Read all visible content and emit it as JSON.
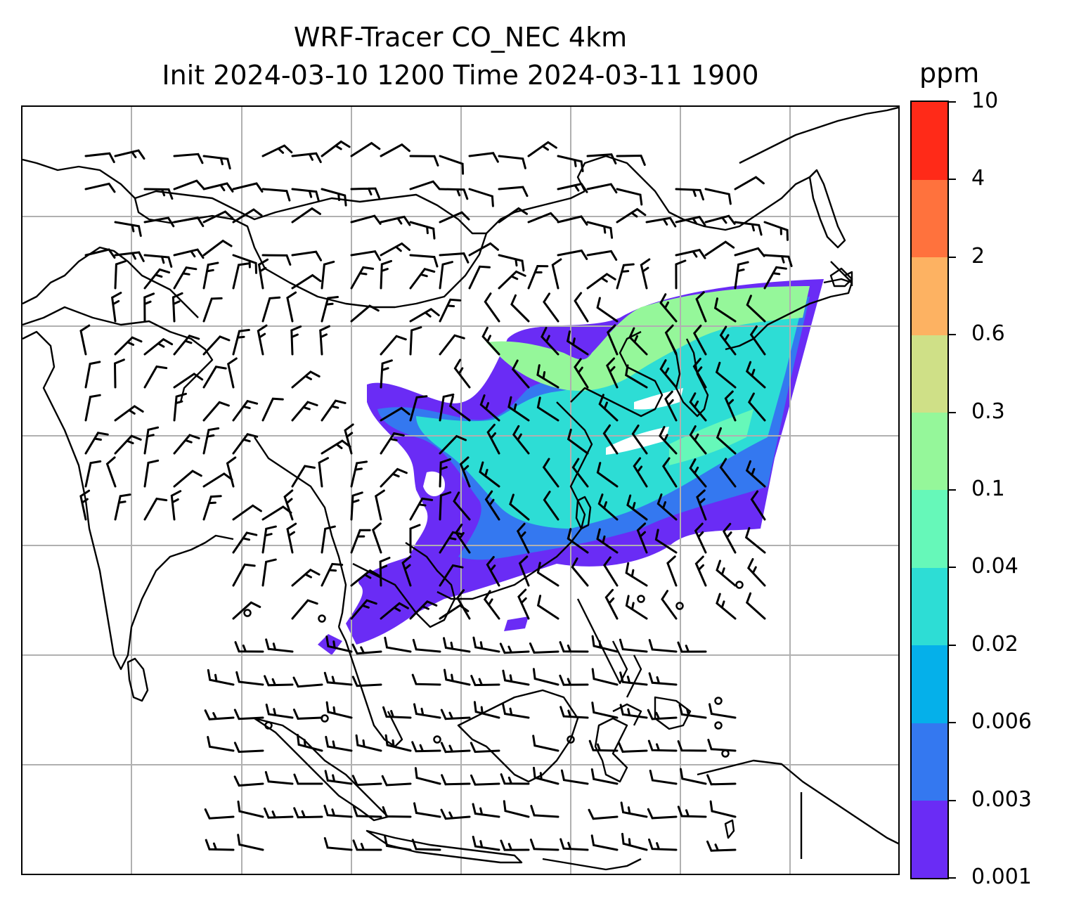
{
  "title_line1": "WRF-Tracer CO_NEC 4km",
  "title_line2": "Init 2024-03-10 1200 Time 2024-03-11 1900",
  "colorbar": {
    "units": "ppm",
    "levels": [
      "0.001",
      "0.003",
      "0.006",
      "0.02",
      "0.04",
      "0.1",
      "0.3",
      "0.6",
      "2",
      "4",
      "10"
    ],
    "colors": [
      "#6a2cf5",
      "#3478f0",
      "#05b0ea",
      "#2dddd5",
      "#66f8b9",
      "#95f79a",
      "#cfe087",
      "#fdb262",
      "#ff723d",
      "#ff2a18"
    ]
  },
  "map": {
    "gridline_color": "#b0b0b0",
    "coastline_color": "#000000",
    "tracer_plume_colors": {
      "low": "#6a2cf5",
      "mid": "#2dddd5",
      "high": "#95f79a"
    },
    "wind_barb_color": "#000000"
  }
}
